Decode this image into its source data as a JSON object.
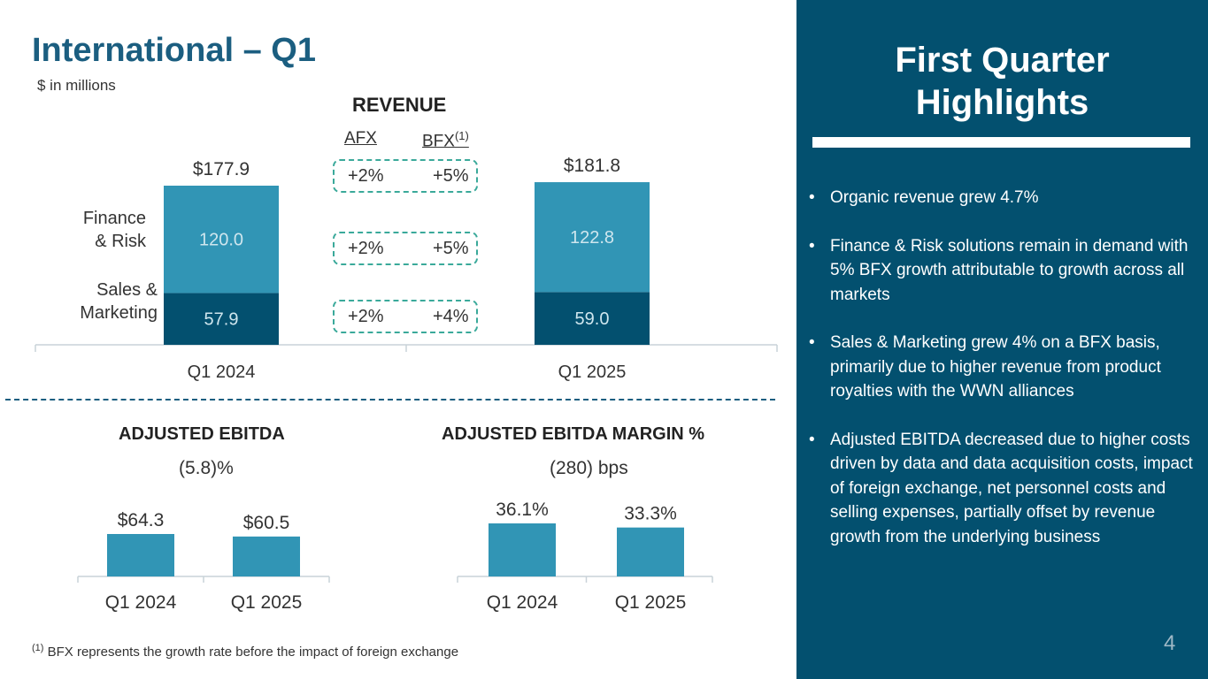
{
  "header": {
    "title": "International – Q1",
    "subtitle": "$ in millions"
  },
  "revenue": {
    "title": "REVENUE",
    "col_afx": "AFX",
    "col_bfx": "BFX",
    "col_bfx_note": "(1)",
    "segments": {
      "finance_risk": {
        "label_line1": "Finance",
        "label_line2": "& Risk",
        "afx": "+2%",
        "bfx": "+5%"
      },
      "sales_marketing": {
        "label_line1": "Sales &",
        "label_line2": "Marketing",
        "afx": "+2%",
        "bfx": "+4%"
      }
    },
    "total_growth": {
      "afx": "+2%",
      "bfx": "+5%"
    }
  },
  "ebitda": {
    "title": "ADJUSTED EBITDA",
    "change": "(5.8)%"
  },
  "margin": {
    "title": "ADJUSTED EBITDA MARGIN %",
    "change": "(280) bps"
  },
  "chart_data": [
    {
      "type": "bar",
      "stacked": true,
      "title": "REVENUE",
      "categories": [
        "Q1 2024",
        "Q1 2025"
      ],
      "series": [
        {
          "name": "Sales & Marketing",
          "values": [
            57.9,
            59.0
          ],
          "labels": [
            "57.9",
            "59.0"
          ],
          "color": "#03506f"
        },
        {
          "name": "Finance & Risk",
          "values": [
            120.0,
            122.8
          ],
          "labels": [
            "120.0",
            "122.8"
          ],
          "color": "#3195b5"
        }
      ],
      "totals": [
        "$177.9",
        "$181.8"
      ],
      "ylim": [
        0,
        200
      ]
    },
    {
      "type": "bar",
      "title": "ADJUSTED EBITDA",
      "categories": [
        "Q1 2024",
        "Q1 2025"
      ],
      "values": [
        64.3,
        60.5
      ],
      "labels": [
        "$64.3",
        "$60.5"
      ],
      "ylim": [
        0,
        200
      ],
      "color": "#3195b5"
    },
    {
      "type": "bar",
      "title": "ADJUSTED EBITDA MARGIN %",
      "categories": [
        "Q1 2024",
        "Q1 2025"
      ],
      "values": [
        36.1,
        33.3
      ],
      "labels": [
        "36.1%",
        "33.3%"
      ],
      "ylim": [
        0,
        100
      ],
      "color": "#3195b5"
    }
  ],
  "highlights": {
    "title_line1": "First Quarter",
    "title_line2": "Highlights",
    "bullet_char": "•",
    "bullets": [
      "Organic revenue grew 4.7%",
      "Finance & Risk solutions remain in demand with 5% BFX growth attributable to growth across all markets",
      "Sales & Marketing grew 4% on a BFX basis, primarily due to higher revenue from product royalties with the WWN alliances",
      "Adjusted EBITDA decreased due to higher costs driven by data and data acquisition costs, impact of foreign exchange, net personnel costs and selling expenses, partially offset by revenue growth from the underlying business"
    ]
  },
  "footnote": {
    "marker": "(1)",
    "text": "BFX represents the growth rate before the impact of foreign exchange"
  },
  "page_number": "4"
}
